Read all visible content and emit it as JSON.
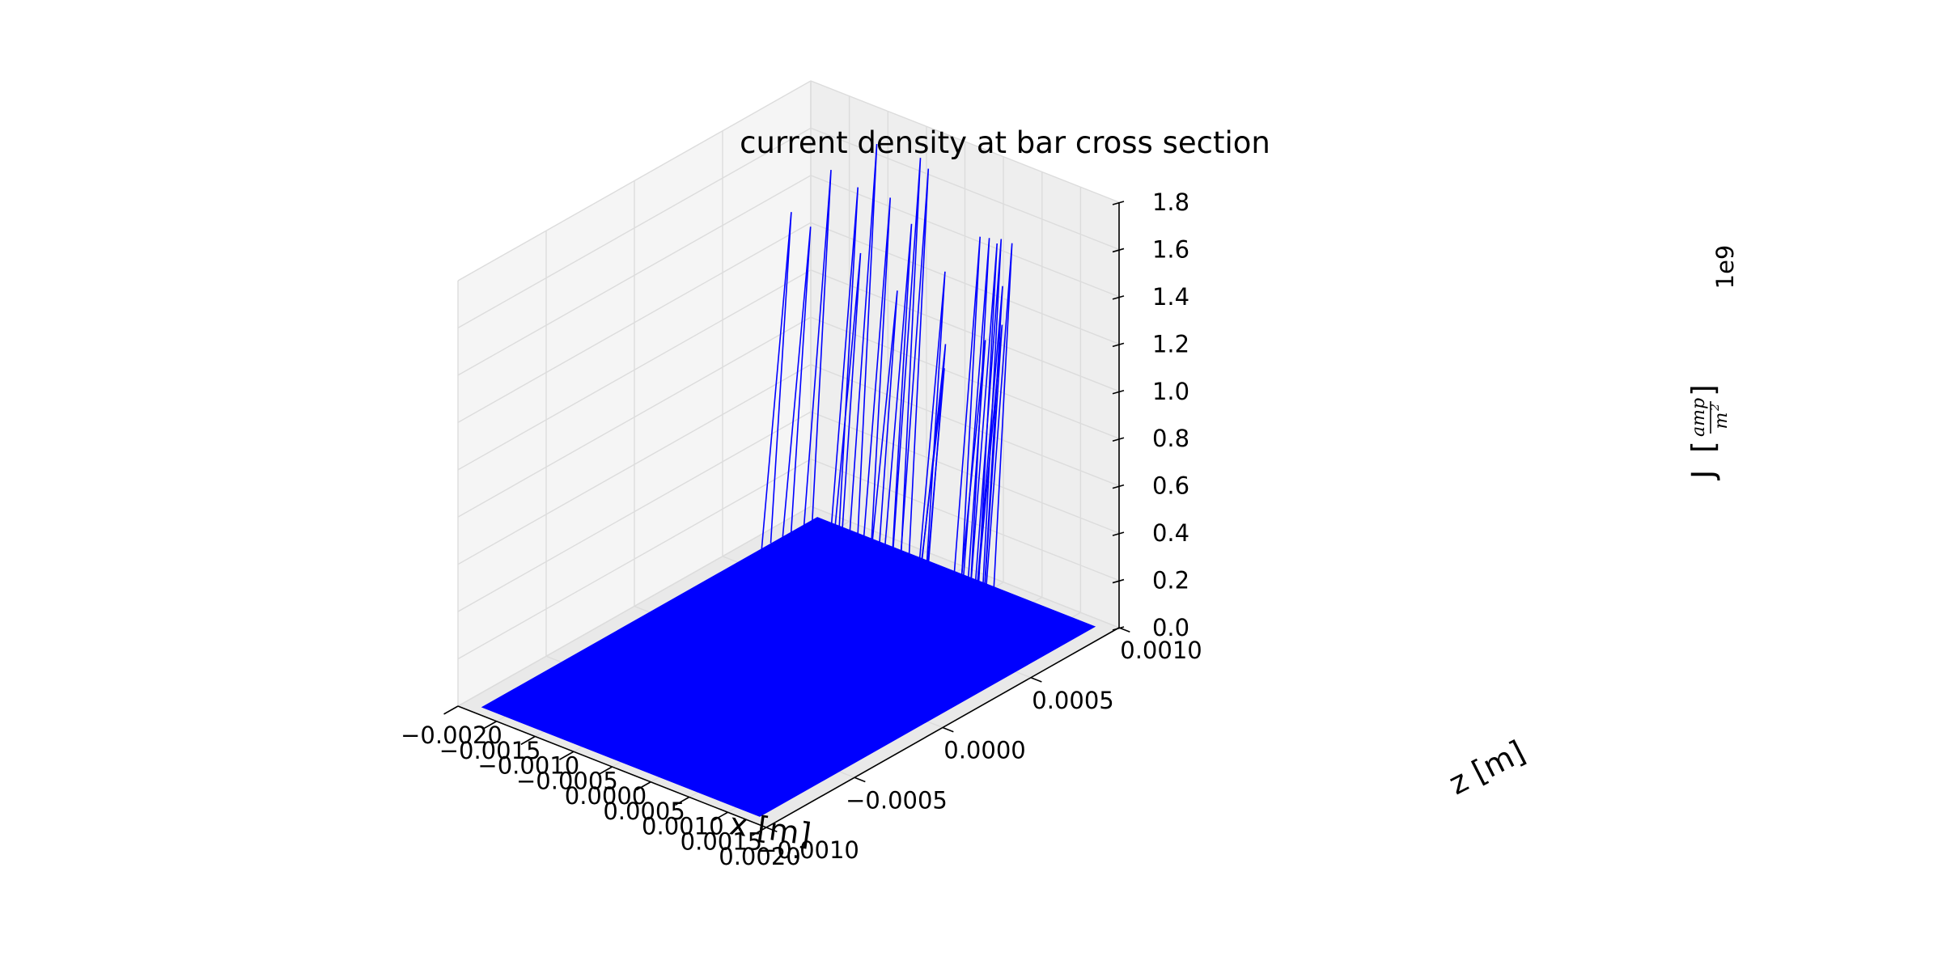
{
  "chart_data": {
    "type": "surface3d",
    "title": "current density at bar cross section",
    "xlabel": "x [m]",
    "zlabel_depth": "z [m]",
    "ylabel_vertical": {
      "symbol": "J",
      "unit_numerator": "amp",
      "unit_denominator": "m",
      "unit_exponent": "2"
    },
    "vertical_offset": "1e9",
    "x_ticks": [
      "−0.0020",
      "−0.0015",
      "−0.0010",
      "−0.0005",
      "0.0000",
      "0.0005",
      "0.0010",
      "0.0015",
      "0.0020"
    ],
    "x_tick_values": [
      -0.002,
      -0.0015,
      -0.001,
      -0.0005,
      0.0,
      0.0005,
      0.001,
      0.0015,
      0.002
    ],
    "z_ticks": [
      "−0.0010",
      "−0.0005",
      "0.0000",
      "0.0005",
      "0.0010"
    ],
    "z_tick_values": [
      -0.001,
      -0.0005,
      0.0,
      0.0005,
      0.001
    ],
    "j_ticks": [
      "0.0",
      "0.2",
      "0.4",
      "0.6",
      "0.8",
      "1.0",
      "1.2",
      "1.4",
      "1.6",
      "1.8"
    ],
    "j_tick_values": [
      0.0,
      0.2,
      0.4,
      0.6,
      0.8,
      1.0,
      1.2,
      1.4,
      1.6,
      1.8
    ],
    "xlim": [
      -0.002,
      0.002
    ],
    "zlim": [
      -0.001,
      0.001
    ],
    "jlim": [
      0.0,
      1.8
    ],
    "surface": {
      "x_range": [
        -0.0018,
        0.0018
      ],
      "z_range": [
        -0.00095,
        0.00095
      ],
      "base_value": 0.0
    },
    "spikes": [
      {
        "x": -0.00175,
        "z": 0.00078,
        "j": 1.37
      },
      {
        "x": -0.0015,
        "z": 0.00078,
        "j": 1.34
      },
      {
        "x": -0.00128,
        "z": 0.0008,
        "j": 1.6
      },
      {
        "x": -0.001,
        "z": 0.00083,
        "j": 1.55
      },
      {
        "x": -0.00092,
        "z": 0.00081,
        "j": 1.29
      },
      {
        "x": -0.0008,
        "z": 0.00085,
        "j": 1.75
      },
      {
        "x": -0.00058,
        "z": 0.00083,
        "j": 1.56
      },
      {
        "x": -0.00042,
        "z": 0.0008,
        "j": 1.2
      },
      {
        "x": -0.00035,
        "z": 0.00085,
        "j": 1.47
      },
      {
        "x": -0.00028,
        "z": 0.00087,
        "j": 1.75
      },
      {
        "x": -0.0002,
        "z": 0.00088,
        "j": 1.71
      },
      {
        "x": 0.0002,
        "z": 0.0008,
        "j": 1.36
      },
      {
        "x": 0.00032,
        "z": 0.00075,
        "j": 1.09
      },
      {
        "x": 0.00035,
        "z": 0.00073,
        "j": 1.0
      },
      {
        "x": 0.0007,
        "z": 0.00078,
        "j": 1.58
      },
      {
        "x": 0.00082,
        "z": 0.00078,
        "j": 1.59
      },
      {
        "x": 0.00086,
        "z": 0.00074,
        "j": 1.18
      },
      {
        "x": 0.00092,
        "z": 0.00078,
        "j": 1.58
      },
      {
        "x": 0.00102,
        "z": 0.00076,
        "j": 1.62
      },
      {
        "x": 0.00106,
        "z": 0.00075,
        "j": 1.43
      },
      {
        "x": 0.0011,
        "z": 0.00073,
        "j": 1.28
      },
      {
        "x": 0.00116,
        "z": 0.00076,
        "j": 1.62
      }
    ],
    "colors": {
      "surface": "#0000ff",
      "pane_left": "#f5f5f5",
      "pane_back": "#eeeeee",
      "pane_floor": "#e9e9e9",
      "grid": "#dcdcdc"
    },
    "grid": true,
    "legend": "none"
  }
}
